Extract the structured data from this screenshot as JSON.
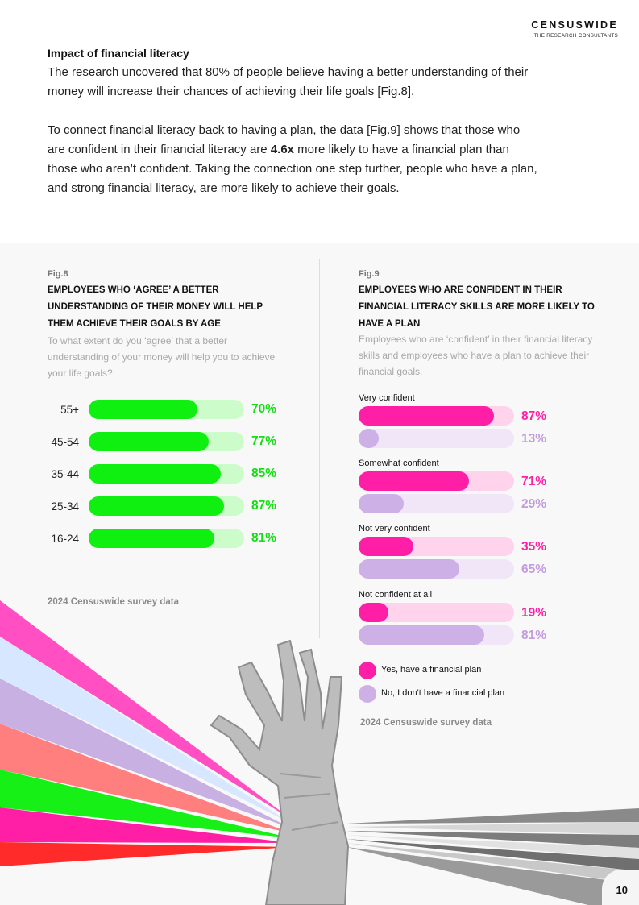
{
  "header": {
    "brand_name": "CENSUSWIDE",
    "brand_tagline": "THE RESEARCH CONSULTANTS"
  },
  "intro": {
    "heading": "Impact of financial literacy",
    "para1": "The research uncovered that 80% of people believe having a better understanding of their money will increase their chances of achieving their life goals [Fig.8].",
    "para2_before": "To connect financial literacy back to having a plan, the data [Fig.9] shows that those who are confident in their financial literacy are ",
    "para2_bold": "4.6x",
    "para2_after": " more likely to have a financial plan than those who aren’t confident. Taking the connection one step further, people who have a plan, and strong financial literacy, are more likely to achieve their goals."
  },
  "fig8": {
    "label": "Fig.8",
    "title": "EMPLOYEES WHO ‘AGREE’ A BETTER UNDERSTANDING OF THEIR MONEY WILL HELP THEM ACHIEVE THEIR GOALS BY AGE",
    "question": "To what extent do you ‘agree’ that a better understanding of your money will help you to achieve your life goals?",
    "source": "2024 Censuswide survey data",
    "colors": {
      "fill": "#10f010",
      "track": "#ccfcc9",
      "value": "#10e010"
    }
  },
  "fig9": {
    "label": "Fig.9",
    "title": "EMPLOYEES WHO ARE CONFIDENT IN THEIR FINANCIAL LITERACY SKILLS ARE MORE LIKELY TO HAVE A PLAN",
    "question": "Employees who are ‘confident’ in their financial literacy skills and employees who have a plan to achieve their financial goals.",
    "source": "2024 Censuswide survey data",
    "colors": {
      "yes_fill": "#ff1fa6",
      "yes_track": "#ffd3ec",
      "yes_value": "#ff1fa6",
      "no_fill": "#cdb1e6",
      "no_track": "#f1e6f8",
      "no_value": "#c39bde"
    }
  },
  "chart_data": [
    {
      "type": "bar",
      "orientation": "horizontal",
      "categories": [
        "55+",
        "45-54",
        "35-44",
        "25-34",
        "16-24"
      ],
      "values": [
        70,
        77,
        85,
        87,
        81
      ],
      "value_labels": [
        "70%",
        "77%",
        "85%",
        "87%",
        "81%"
      ],
      "ylim": [
        0,
        100
      ]
    },
    {
      "type": "bar",
      "orientation": "horizontal",
      "categories": [
        "Very confident",
        "Somewhat confident",
        "Not very confident",
        "Not confident at all"
      ],
      "series": [
        {
          "name": "Yes, have a financial plan",
          "values": [
            87,
            71,
            35,
            19
          ],
          "value_labels": [
            "87%",
            "71%",
            "35%",
            "19%"
          ]
        },
        {
          "name": "No, I don't have a financial plan",
          "values": [
            13,
            29,
            65,
            81
          ],
          "value_labels": [
            "13%",
            "29%",
            "65%",
            "81%"
          ]
        }
      ],
      "ylim": [
        0,
        100
      ]
    }
  ],
  "page": {
    "number": "10"
  }
}
